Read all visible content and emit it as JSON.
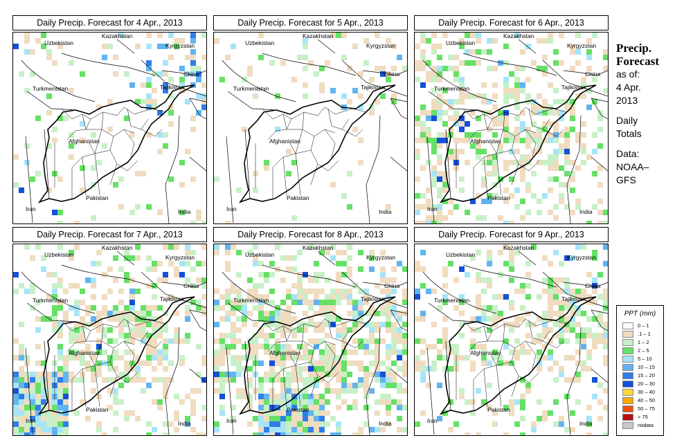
{
  "panels": [
    {
      "title": "Daily Precip. Forecast for  4 Apr., 2013"
    },
    {
      "title": "Daily Precip. Forecast for  5 Apr., 2013"
    },
    {
      "title": "Daily Precip. Forecast for  6 Apr., 2013"
    },
    {
      "title": "Daily Precip. Forecast for  7 Apr., 2013"
    },
    {
      "title": "Daily Precip. Forecast for  8 Apr., 2013"
    },
    {
      "title": "Daily Precip. Forecast for  9 Apr., 2013"
    }
  ],
  "map_labels": {
    "kazakhstan": "Kazakhstan",
    "uzbekistan": "Uzbekistan",
    "kyrgyzstan": "Kyrgyzstan",
    "china": "China",
    "turkmenistan": "Turkmenistan",
    "tajikistan": "Tajikistan",
    "afghanistan": "Afghanistan",
    "iran": "Iran",
    "pakistan": "Pakistan",
    "india": "India"
  },
  "side": {
    "title_line1": "Precip.",
    "title_line2": "Forecast",
    "as_of": "as of:",
    "date_line1": "4 Apr.",
    "date_line2": "2013",
    "totals_line1": "Daily",
    "totals_line2": "Totals",
    "data_line1": "Data:",
    "data_line2": "NOAA–",
    "data_line3": "GFS"
  },
  "legend": {
    "title": "PPT (mm)",
    "items": [
      {
        "label": "0 – 1",
        "color": "#ffffff"
      },
      {
        "label": ".1 – 1",
        "color": "#f0dcc0"
      },
      {
        "label": "1 – 2",
        "color": "#c8f0c8"
      },
      {
        "label": "2 – 5",
        "color": "#66e066"
      },
      {
        "label": "5 – 10",
        "color": "#a8e4f8"
      },
      {
        "label": "10 – 15",
        "color": "#62b4f0"
      },
      {
        "label": "15 – 20",
        "color": "#2f7ee8"
      },
      {
        "label": "20 – 30",
        "color": "#1450d8"
      },
      {
        "label": "30 – 40",
        "color": "#f8d840"
      },
      {
        "label": "40 – 50",
        "color": "#f8a800"
      },
      {
        "label": "50 – 75",
        "color": "#f05010"
      },
      {
        "label": "> 75",
        "color": "#b81010"
      },
      {
        "label": "nodata",
        "color": "#c8c8c8"
      }
    ]
  }
}
